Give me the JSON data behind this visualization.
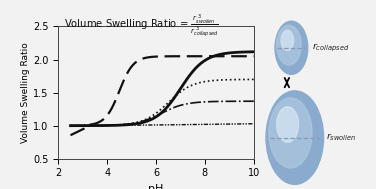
{
  "title_text": "Volume Swelling Ratio = ",
  "title_math": "$\\frac{r_{swollen}^3}{r_{collapsed}^3}$",
  "xlabel": "pH",
  "ylabel": "Volume Swelling Ratio",
  "xlim": [
    2,
    10
  ],
  "ylim": [
    0.5,
    2.5
  ],
  "xticks": [
    2,
    4,
    6,
    8,
    10
  ],
  "yticks": [
    0.5,
    1.0,
    1.5,
    2.0,
    2.5
  ],
  "bg_color": "#f2f2f2",
  "curve_color": "#111111",
  "sphere_base": "#8aabce",
  "sphere_mid": "#b0c8e0",
  "sphere_light": "#d8e8f4",
  "dashed_line_color": "#6677aa",
  "curves": {
    "solid_x0": 7.0,
    "solid_k": 2.0,
    "solid_max": 2.12,
    "dash_x0": 4.5,
    "dash_k": 3.5,
    "dash_max": 2.05,
    "dot_x0": 6.5,
    "dot_k": 2.0,
    "dot_max": 1.7,
    "dashdot_x0": 6.2,
    "dashdot_k": 2.0,
    "dashdot_max": 1.37,
    "flat_x0": 8.0,
    "flat_k": 0.5,
    "flat_max": 1.04
  }
}
